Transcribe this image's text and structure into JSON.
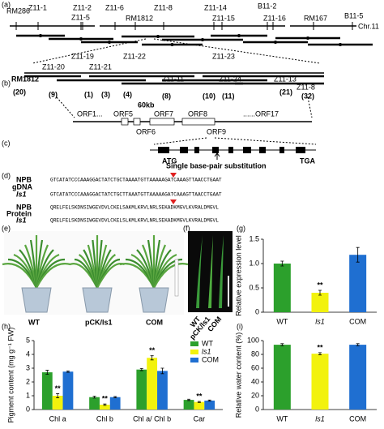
{
  "panel_labels": [
    "(a)",
    "(b)",
    "(c)",
    "(d)",
    "(e)",
    "(f)",
    "(g)",
    "(h)",
    "(i)"
  ],
  "map_a": {
    "markers": [
      "RM286",
      "Z11-1",
      "Z11-2",
      "Z11-5",
      "Z11-6",
      "RM1812",
      "Z11-8",
      "Z11-14",
      "B11-2",
      "Z11-15",
      "Z11-16",
      "RM167",
      "B11-5"
    ],
    "chromosome": "Chr.11"
  },
  "map_b": {
    "markers": [
      "Z11-19",
      "Z11-22",
      "Z11-23",
      "Z11-20",
      "Z11-21",
      "RM1812",
      "Z11-11",
      "Z11-24",
      "Z11-13",
      "Z11-8"
    ],
    "recombinants": [
      "(20)",
      "(9)",
      "(1)",
      "(3)",
      "(4)",
      "(8)",
      "(10)",
      "(11)",
      "(21)",
      "(32)"
    ],
    "scale": "60kb",
    "orfs": [
      "ORF1...",
      "ORF5",
      "ORF7",
      "ORF8",
      "......ORF17",
      "ORF6",
      "ORF9"
    ]
  },
  "gene_model": {
    "start": "ATG",
    "stop": "TGA",
    "mutation": "Single base-pair substitution"
  },
  "sequence": {
    "gdna_label": "gDNA",
    "protein_label": "Protein",
    "rows": [
      {
        "name": "NPB",
        "seq": "GTCATATCCCAAAGGACTATCTGCTAAAATGTTAAAAAGATCAAAGTTAACCTGAAT"
      },
      {
        "name": "ls1",
        "seq": "GTCATATCCCAAAGGACTATCTGCTTAAATGTTAAAAAGATCAAAGTTAACCTGAAT"
      },
      {
        "name": "NPB",
        "seq": "QRELFELSKDNSIWGEVDVLCKELSAKMLKRVLNRLSEKADKMGVLKVRALDMGVL"
      },
      {
        "name": "ls1",
        "seq": "QRELFELSKDNSIWGEVDVLCKELSLKMLKRVLNRLSEKADKMGVLKVRALDMGVL"
      }
    ]
  },
  "plants": {
    "e_labels": [
      "WT",
      "pCK/ls1",
      "COM"
    ],
    "f_labels": [
      "WT",
      "pCK/ls1",
      "COM"
    ]
  },
  "chart_data": [
    {
      "type": "bar",
      "ylabel": "Relative expression level",
      "categories": [
        "WT",
        "ls1",
        "COM"
      ],
      "values": [
        1.0,
        0.4,
        1.18
      ],
      "errors": [
        0.05,
        0.05,
        0.15
      ],
      "colors": [
        "#2ca02c",
        "#f2f20d",
        "#1f6fd1"
      ],
      "significance": [
        null,
        "**",
        null
      ],
      "ylim": [
        0,
        1.5
      ],
      "yticks": [
        0,
        0.5,
        {
          "value": 1,
          "label": "1.0"
        },
        1.5
      ]
    },
    {
      "type": "bar",
      "ylabel": "Pigment content (mg g⁻¹ FW)",
      "categories": [
        "Chl a",
        "Chl b",
        "Chl a/ Chl b",
        "Car"
      ],
      "legend": "upper right",
      "series": [
        {
          "name": "WT",
          "color": "#2ca02c",
          "values": [
            2.7,
            0.9,
            2.9,
            0.7
          ],
          "errors": [
            0.15,
            0.07,
            0.08,
            0.05
          ]
        },
        {
          "name": "ls1",
          "color": "#f2f20d",
          "values": [
            1.0,
            0.35,
            3.75,
            0.55
          ],
          "errors": [
            0.15,
            0.05,
            0.15,
            0.04
          ],
          "significance": [
            "**",
            "**",
            "**",
            "**"
          ]
        },
        {
          "name": "COM",
          "color": "#1f6fd1",
          "values": [
            2.75,
            0.9,
            2.8,
            0.65
          ],
          "errors": [
            0.05,
            0.05,
            0.2,
            0.04
          ]
        }
      ],
      "ylim": [
        0,
        5
      ],
      "yticks": [
        0,
        1,
        2,
        3,
        4,
        5
      ]
    },
    {
      "type": "bar",
      "ylabel": "Relative water content (%)",
      "categories": [
        "WT",
        "ls1",
        "COM"
      ],
      "values": [
        94,
        81,
        94
      ],
      "errors": [
        1.5,
        1.5,
        1.5
      ],
      "colors": [
        "#2ca02c",
        "#f2f20d",
        "#1f6fd1"
      ],
      "significance": [
        null,
        "**",
        null
      ],
      "ylim": [
        0,
        100
      ],
      "yticks": [
        0,
        20,
        40,
        60,
        80,
        100
      ]
    }
  ]
}
